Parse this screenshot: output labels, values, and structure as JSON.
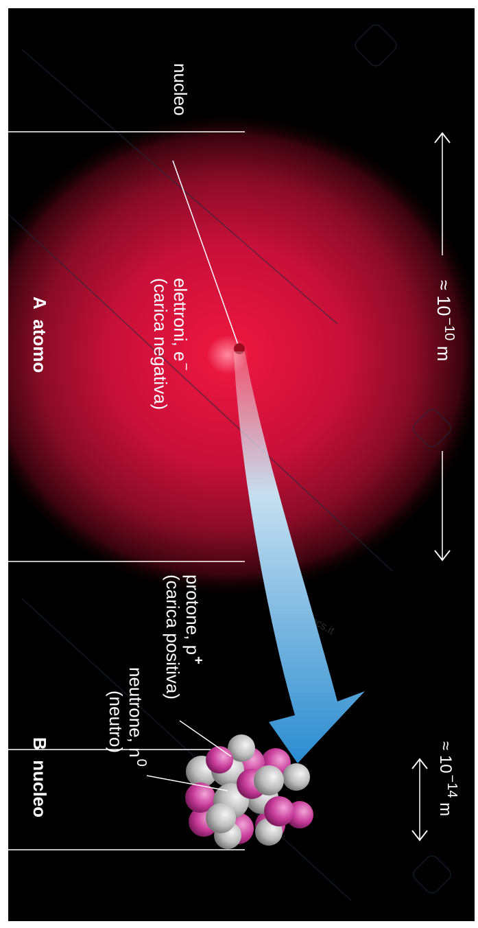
{
  "atom": {
    "nucleus_label": "nucleo",
    "electrons_label": "elettroni, e",
    "electrons_sign": "−",
    "electrons_charge": "(carica negativa)",
    "caption_letter": "A",
    "caption_word": "atomo",
    "size_prefix": "≈ 10",
    "size_exponent": "−10",
    "size_unit": "m"
  },
  "nucleus": {
    "proton_label": "protone, p",
    "proton_sign": "+",
    "proton_charge": "(carica positiva)",
    "neutron_label": "neutrone, n",
    "neutron_sign": "0",
    "neutron_charge": "(neutro)",
    "caption_letter": "B",
    "caption_word": "nucleo",
    "size_prefix": "≈ 10",
    "size_exponent": "−14",
    "size_unit": "m"
  },
  "watermark": "www.unidocs.it",
  "colors": {
    "background": "#000000",
    "electron_cloud": "#d0103a",
    "arrow_start": "#f0f4f8",
    "arrow_end": "#2f8fcf",
    "proton": "#c83b9a",
    "neutron": "#c8c8c8",
    "text": "#ffffff"
  }
}
